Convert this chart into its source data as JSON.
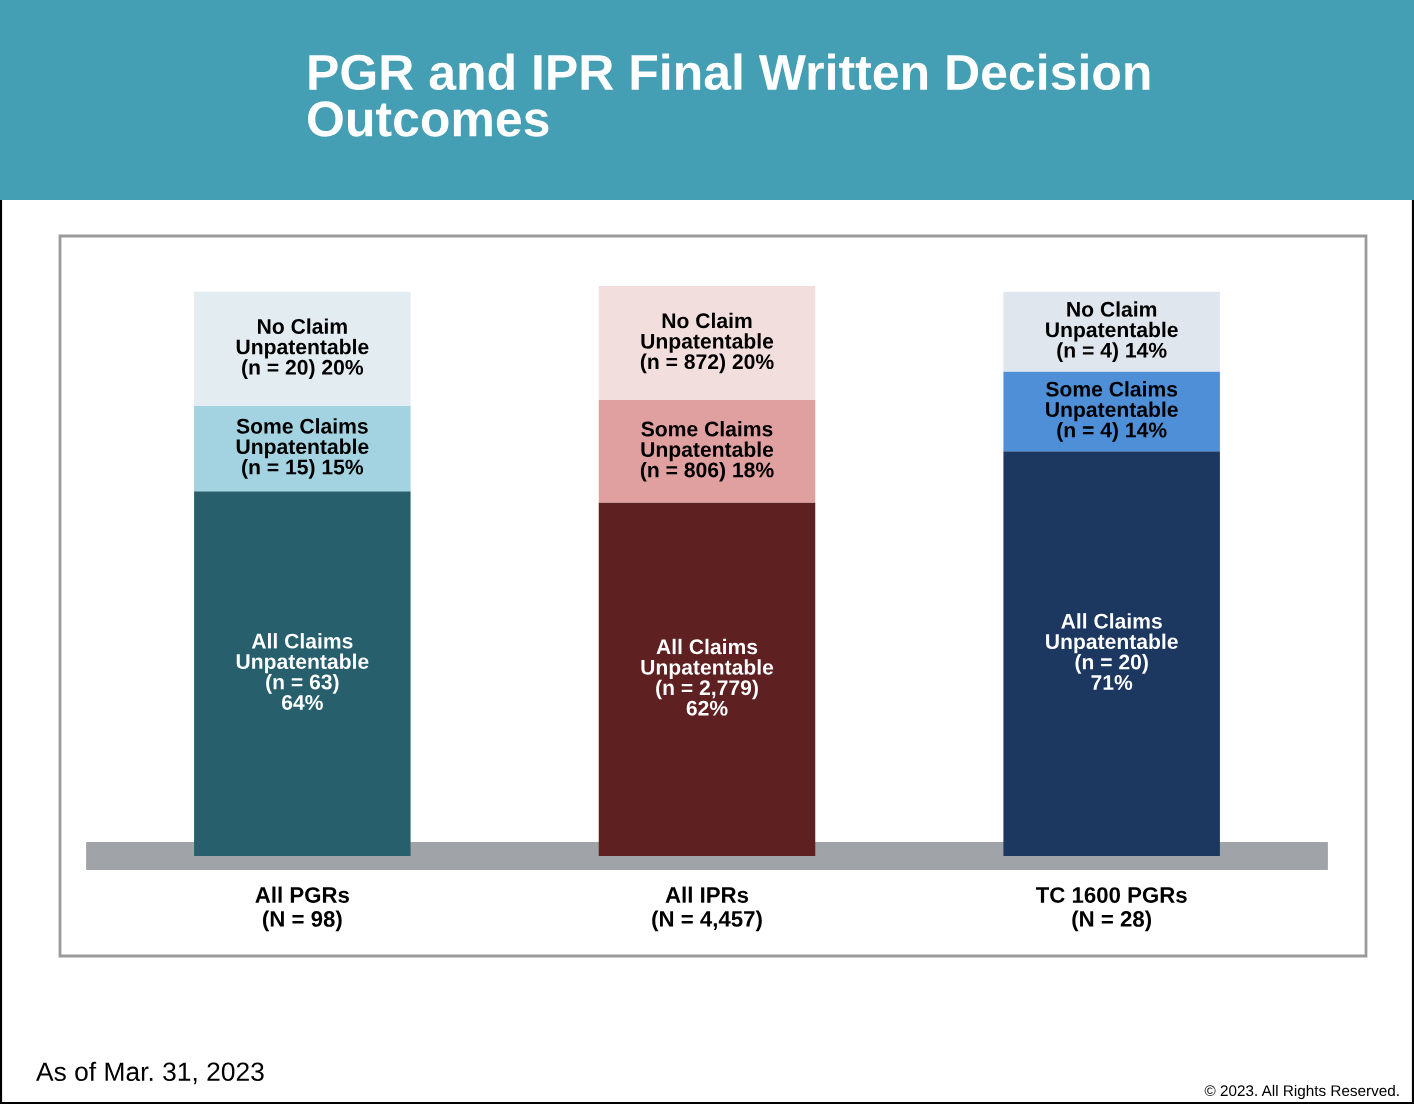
{
  "chart_data": {
    "type": "bar",
    "title": "PGR and IPR Final Written Decision\nOutcomes",
    "categories": [
      "All PGRs\n(N = 98)",
      "All IPRs\n(N = 4,457)",
      "TC 1600 PGRs\n(N = 28)"
    ],
    "stacked": true,
    "series": [
      {
        "colors": [
          "#27606c",
          "#5e2020",
          "#1c3760"
        ],
        "values": [
          64,
          62,
          71
        ],
        "value_labels": [
          "All Claims\nUnpatentable\n(n = 63)\n64%",
          "All Claims\nUnpatentable\n(n = 2,779)\n62%",
          "All Claims\nUnpatentable\n(n = 20)\n71%"
        ]
      },
      {
        "colors": [
          "#a3d3e0",
          "#e0a0a0",
          "#4f8fd8"
        ],
        "values": [
          15,
          18,
          14
        ],
        "value_labels": [
          "Some Claims\nUnpatentable\n(n = 15) 15%",
          "Some Claims\nUnpatentable\n(n = 806) 18%",
          "Some Claims\nUnpatentable\n(n = 4) 14%"
        ]
      },
      {
        "colors": [
          "#e3ecf0",
          "#f3dede",
          "#dfe6ee"
        ],
        "values": [
          20,
          20,
          14
        ],
        "value_labels": [
          "No Claim\nUnpatentable\n(n = 20) 20%",
          "No Claim\nUnpatentable\n(n = 872) 20%",
          "No Claim\nUnpatentable\n(n = 4) 14%"
        ]
      }
    ],
    "tick_labels": "x",
    "annotations": [
      "As of Mar. 31, 2023",
      "© 2023. All Rights Reserved."
    ]
  }
}
